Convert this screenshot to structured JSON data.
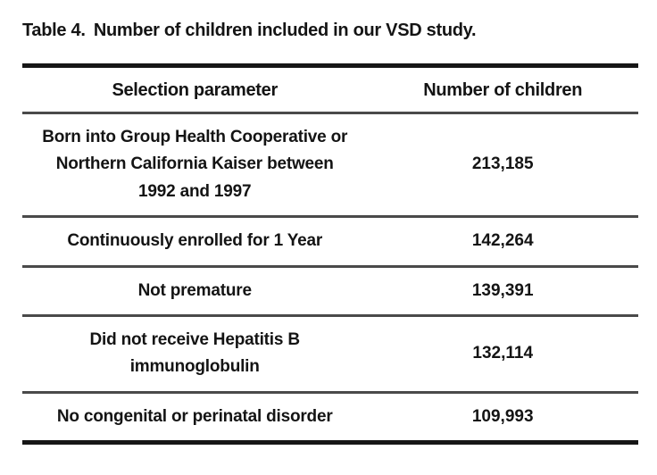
{
  "title": {
    "label": "Table 4.",
    "text": "Number of children included in our VSD study."
  },
  "table": {
    "headers": [
      "Selection parameter",
      "Number of children"
    ],
    "rows": [
      {
        "parameter": "Born into Group Health Cooperative or Northern California Kaiser between 1992 and 1997",
        "count": "213,185"
      },
      {
        "parameter": "Continuously enrolled for 1 Year",
        "count": "142,264"
      },
      {
        "parameter": "Not premature",
        "count": "139,391"
      },
      {
        "parameter": "Did not receive Hepatitis B immunoglobulin",
        "count": "132,114"
      },
      {
        "parameter": "No congenital or perinatal disorder",
        "count": "109,993"
      }
    ]
  },
  "colors": {
    "background": "#ffffff",
    "text": "#141414",
    "rule_heavy": "#161616",
    "rule_light": "#4a4a4a"
  }
}
